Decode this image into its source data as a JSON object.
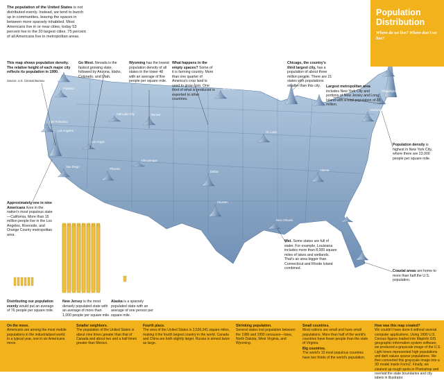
{
  "title": "Population Distribution",
  "subtitle": "Where do we live? Where don't we live?",
  "intro": {
    "lead": "The population of the United States",
    "text": "is not distributed evenly. Instead, we tend to bunch up in communities, leaving the spaces in between more sparsely inhabited. Most Americans live in or near cities; today 53 percent live in the 20 largest cities. 75 percent of all Americans live in metropolitan areas."
  },
  "source": "Source: U.S. Census Bureau",
  "annotations": [
    {
      "heading": "This map shows population density. The relative height of each major city reflects its population in 1990."
    },
    {
      "heading": "Go West.",
      "text": "Nevada is the fastest growing state, followed by Arizona, Idaho, Colorado, and Utah."
    },
    {
      "heading": "Wyoming",
      "text": "has the lowest population density of all states in the lower 48 with an average of five people per square mile."
    },
    {
      "heading": "What happens in the empty spaces?",
      "text": "Some of it is farming country. More than one quarter of America's crop land is used to grow corn. One third of what is produced is exported to other countries."
    },
    {
      "heading": "Chicago, the country's third largest city,",
      "text": "has a population of about three million people. There are 21 states with populations smaller than this city."
    },
    {
      "heading": "Largest metropolitan area",
      "text": "includes New York City and portions of New Jersey and Long Island with a total population of 20 million."
    },
    {
      "heading": "Population density",
      "text": "is highest in New York City, where there are 23,000 people per square mile."
    },
    {
      "heading": "Approximately one in nine Americans",
      "text": "lives in the nation's most populous state—California. More than 15 million people live in the Los Angeles, Riverside, and Orange County metropolitan area."
    },
    {
      "heading": "Wet.",
      "text": "Some states are full of water. For example, Louisiana includes more than 8,000 square miles of lakes and wetlands. That's an area bigger than Connecticut and Rhode Island combined."
    },
    {
      "heading": "Coastal areas",
      "text": "are home to more than half the U.S. population."
    }
  ],
  "comparisons": [
    {
      "heading": "Distributing our population evenly",
      "text": "would put an average of 76 people per square mile."
    },
    {
      "heading": "New Jersey",
      "text": "is the most densely populated state with an average of more than 1,000 people per square mile."
    },
    {
      "heading": "Alaska",
      "text": "is a sparsely populated state with an average of one person per square mile."
    }
  ],
  "cities": [
    "New York City",
    "Seattle",
    "Portland",
    "San Francisco",
    "Los Angeles",
    "San Diego",
    "Las Vegas",
    "Phoenix",
    "Salt Lake City",
    "Denver",
    "Albuquerque",
    "Minneapolis",
    "Chicago",
    "Detroit",
    "St. Louis",
    "Dallas",
    "Houston",
    "New Orleans",
    "Atlanta",
    "Tampa",
    "Miami",
    "Washington",
    "Philadelphia",
    "Boston"
  ],
  "footer": [
    {
      "heading": "On the move.",
      "text": "Americans are among the most mobile populations in the industrialized world. In a typical year, one in six Americans move."
    },
    {
      "heading": "Smaller neighbors.",
      "text": "The population of the United States is about nine times greater than that of Canada and about two and a half times greater than Mexico."
    },
    {
      "heading": "Fourth place.",
      "text": "The area of the United States is 3,536,341 square miles, making it the fourth largest country in the world. Canada and China are both slightly larger. Russia is almost twice as large."
    },
    {
      "heading": "Shrinking population.",
      "text": "Several states lost population between the 1980 and 1990 censuses—Iowa, North Dakota, West Virginia, and Wyoming."
    },
    {
      "heading": "Small countries.",
      "text": "Most nations are small and have small populations. More than half of the world's countries have fewer people than the state of Virginia."
    },
    {
      "heading": "Big countries.",
      "text": "The world's 10 most populous countries have two thirds of the world's population."
    },
    {
      "heading": "How was this map created?",
      "text": "We couldn't have done it without several computer applications. Using 1990 U.S. Census figures loaded into Mapinfo GIS geographic information system software, we produced a grayscale image of the U.S. Light tones represented high populations and dark values sparse populations. We then converted this grayscale image into a 3D model inside FormZ. Finally, we cleaned up rough spots in Photoshop and overlaid the state boundaries and city labels in Illustrator."
    }
  ]
}
